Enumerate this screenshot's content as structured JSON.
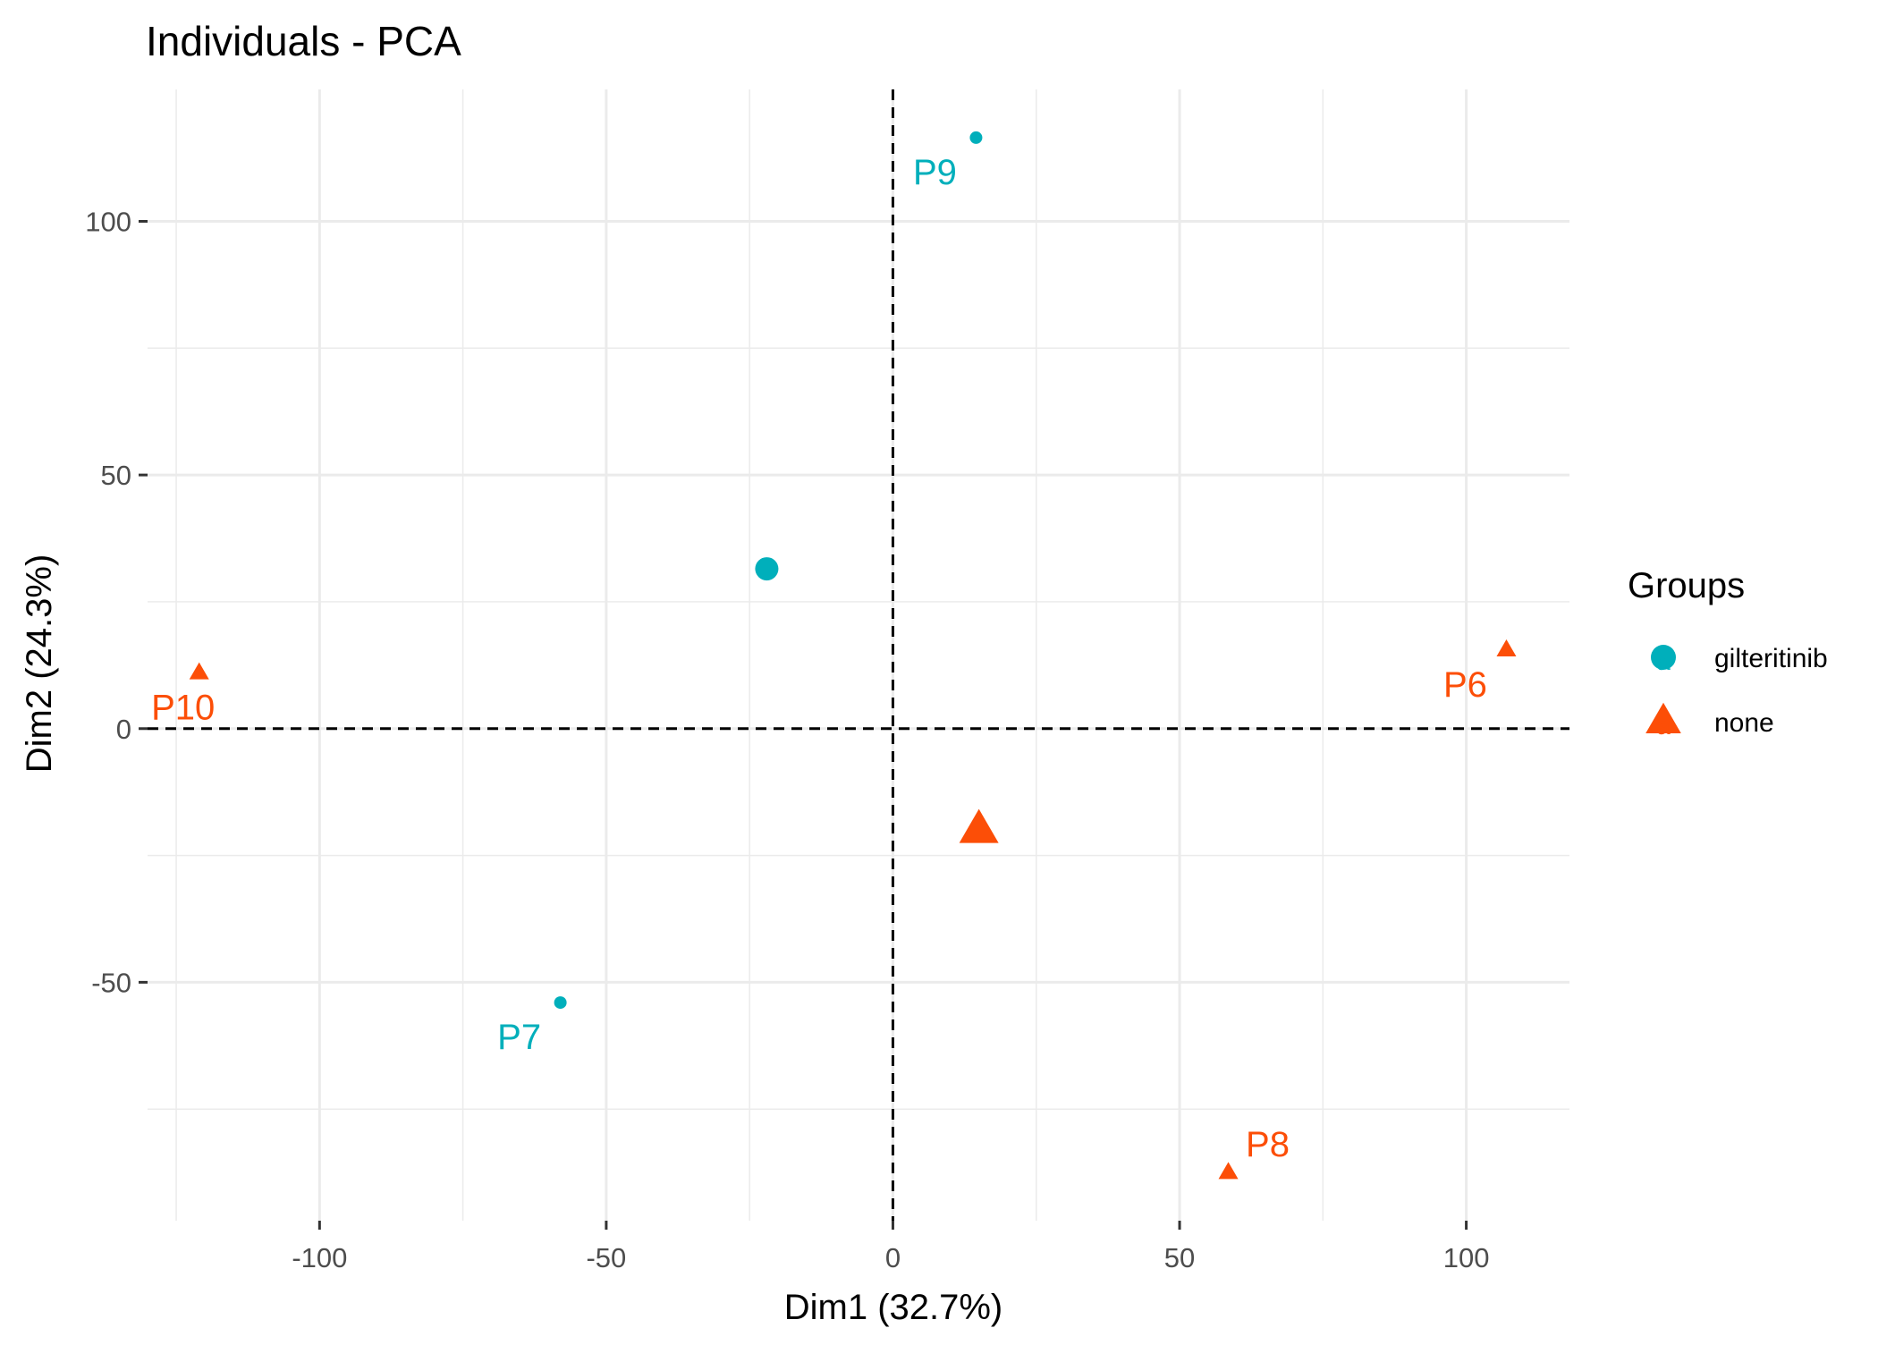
{
  "chart_data": {
    "type": "scatter",
    "title": "Individuals - PCA",
    "xlabel": "Dim1 (32.7%)",
    "ylabel": "Dim2 (24.3%)",
    "xlim": [
      -130,
      118
    ],
    "ylim": [
      -97,
      126
    ],
    "xticks": [
      -100,
      -50,
      0,
      50,
      100
    ],
    "yticks": [
      -50,
      0,
      50,
      100
    ],
    "xminor": [
      -125,
      -75,
      -25,
      25,
      75
    ],
    "yminor": [
      -75,
      -25,
      25,
      75
    ],
    "grid": true,
    "reference_lines": {
      "x": 0,
      "y": 0,
      "style": "dashed"
    },
    "legend": {
      "title": "Groups",
      "position": "right",
      "entries": [
        {
          "name": "gilteritinib",
          "color": "#00AFBB",
          "shape": "circle",
          "mark": "a"
        },
        {
          "name": "none",
          "color": "#FC4E07",
          "shape": "triangle",
          "mark": "a"
        }
      ]
    },
    "series": [
      {
        "name": "gilteritinib",
        "color": "#00AFBB",
        "shape": "circle",
        "points": [
          {
            "label": "P9",
            "x": 14.5,
            "y": 116.5
          },
          {
            "label": "P7",
            "x": -58,
            "y": -54
          }
        ],
        "centroid": {
          "x": -22,
          "y": 31.5
        }
      },
      {
        "name": "none",
        "color": "#FC4E07",
        "shape": "triangle",
        "points": [
          {
            "label": "P6",
            "x": 107,
            "y": 15.5
          },
          {
            "label": "P10",
            "x": -121,
            "y": 11
          },
          {
            "label": "P8",
            "x": 58.5,
            "y": -87.5
          }
        ],
        "centroid": {
          "x": 15,
          "y": -20
        }
      }
    ]
  }
}
